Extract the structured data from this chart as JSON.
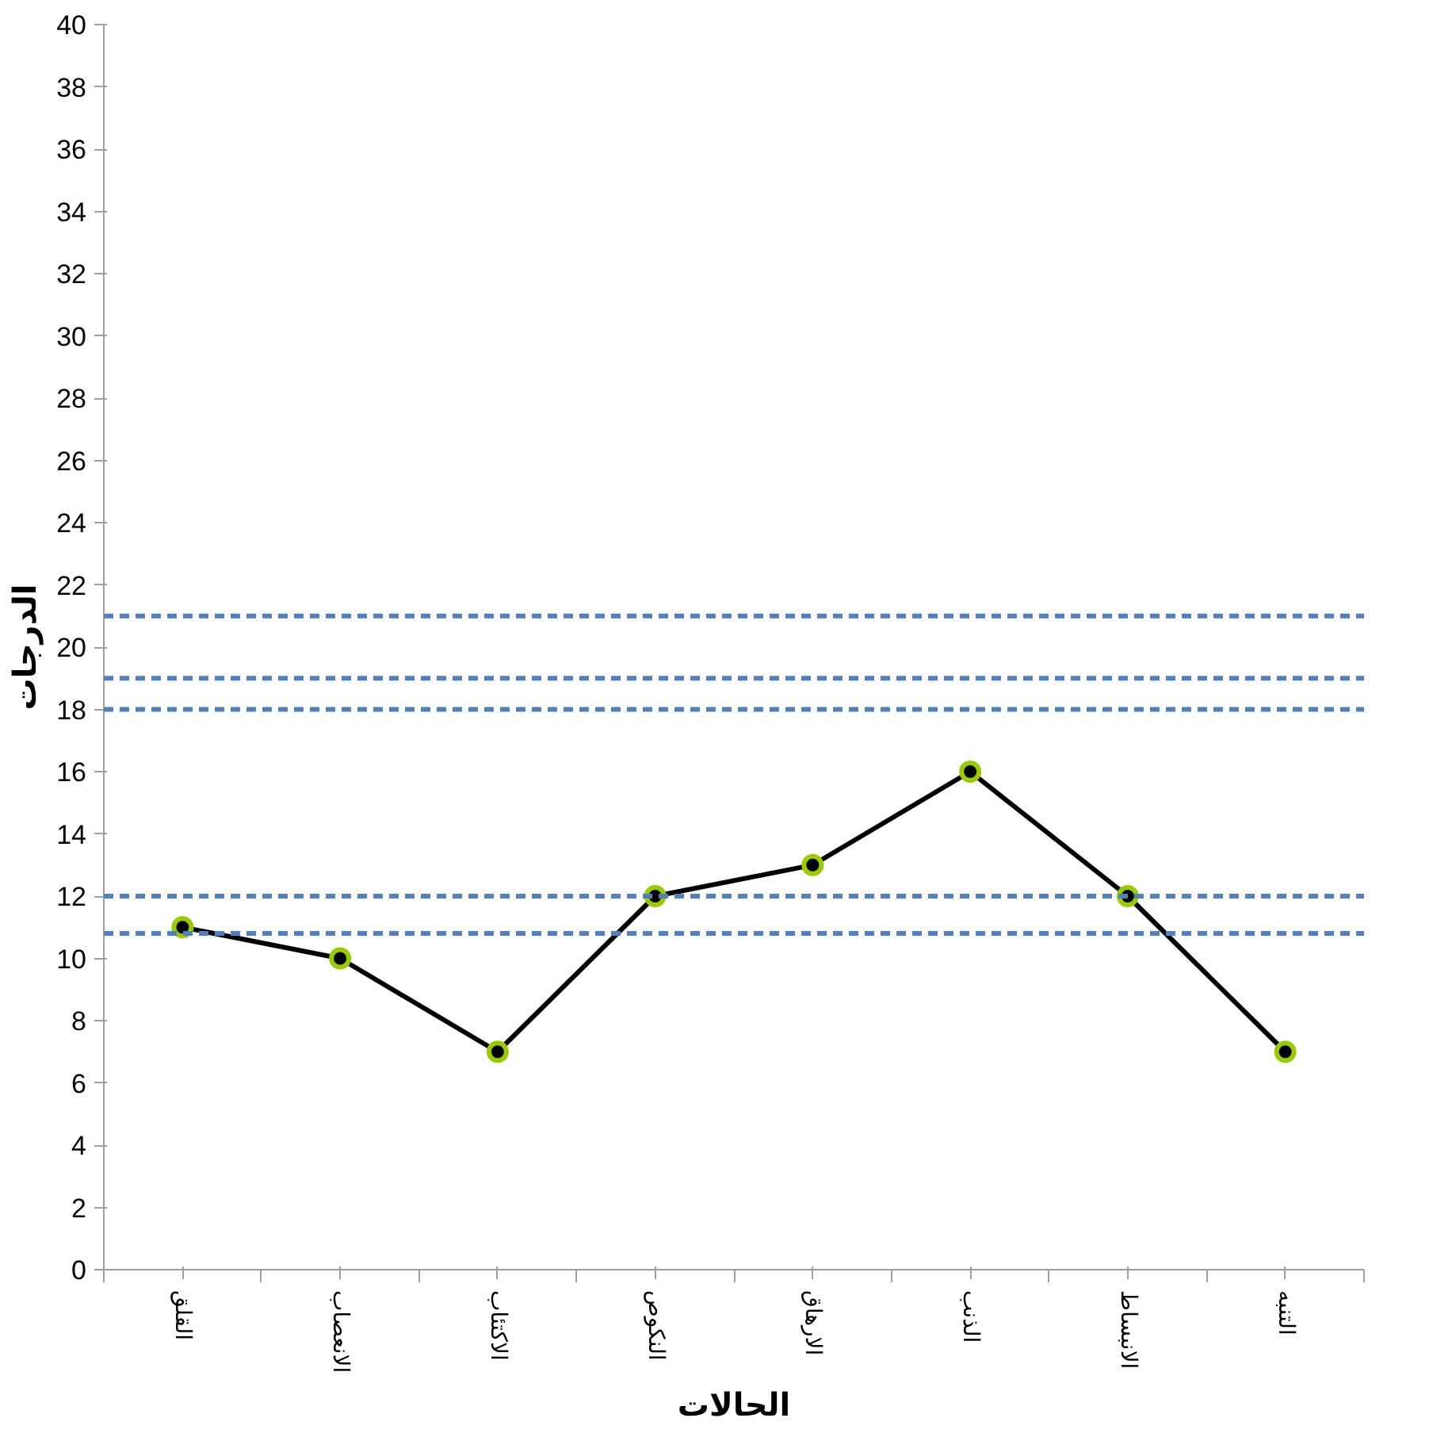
{
  "chart_data": {
    "type": "line",
    "xlabel": "الحالات",
    "ylabel": "الدرجات",
    "categories": [
      "القلق",
      "الانعصاب",
      "الاكتئاب",
      "النكوص",
      "الارهاق",
      "الذنب",
      "الانبساط",
      "التنبه"
    ],
    "series": [
      {
        "color": "#000000",
        "values": [
          11,
          10,
          7,
          12,
          13,
          16,
          12,
          7
        ]
      }
    ],
    "ylim": [
      0,
      40
    ],
    "yticks": [
      0,
      2,
      4,
      6,
      8,
      10,
      12,
      14,
      16,
      18,
      20,
      22,
      24,
      26,
      28,
      30,
      32,
      34,
      36,
      38,
      40
    ],
    "marker": "circle",
    "line_style": "solid",
    "grid": false,
    "ref_lines": [
      {
        "axis": "y",
        "value": 21,
        "color": "#4f81bd",
        "line_style": "dashed"
      },
      {
        "axis": "y",
        "value": 19,
        "color": "#4f81bd",
        "line_style": "dashed"
      },
      {
        "axis": "y",
        "value": 18,
        "color": "#4f81bd",
        "line_style": "dashed"
      },
      {
        "axis": "y",
        "value": 12,
        "color": "#4f81bd",
        "line_style": "dashed"
      },
      {
        "axis": "y",
        "value": 10.8,
        "color": "#4f81bd",
        "line_style": "dashed"
      }
    ]
  }
}
